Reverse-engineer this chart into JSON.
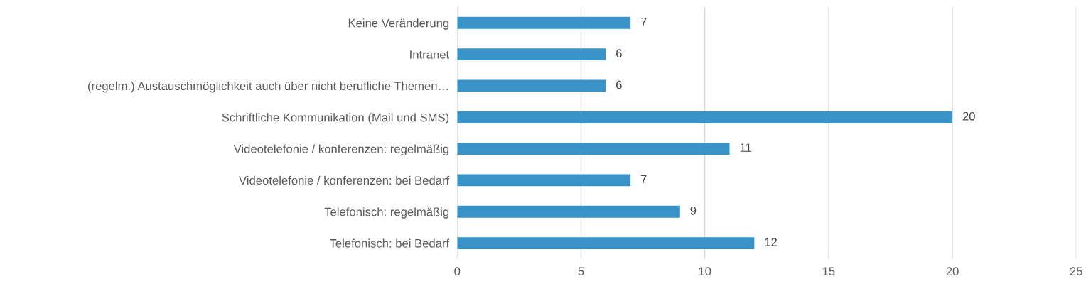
{
  "chart_data": {
    "type": "bar",
    "orientation": "horizontal",
    "categories": [
      "Keine Veränderung",
      "Intranet",
      "(regelm.) Austauschmöglichkeit auch über nicht berufliche Themen…",
      "Schriftliche Kommunikation (Mail und SMS)",
      "Videotelefonie / konferenzen: regelmäßig",
      "Videotelefonie / konferenzen: bei Bedarf",
      "Telefonisch: regelmäßig",
      "Telefonisch: bei Bedarf"
    ],
    "values": [
      7,
      6,
      6,
      20,
      11,
      7,
      9,
      12
    ],
    "color": "#3a93c8",
    "xlim": [
      0,
      25
    ],
    "xticks": [
      0,
      5,
      10,
      15,
      20,
      25
    ],
    "grid": "x",
    "data_labels": true
  }
}
